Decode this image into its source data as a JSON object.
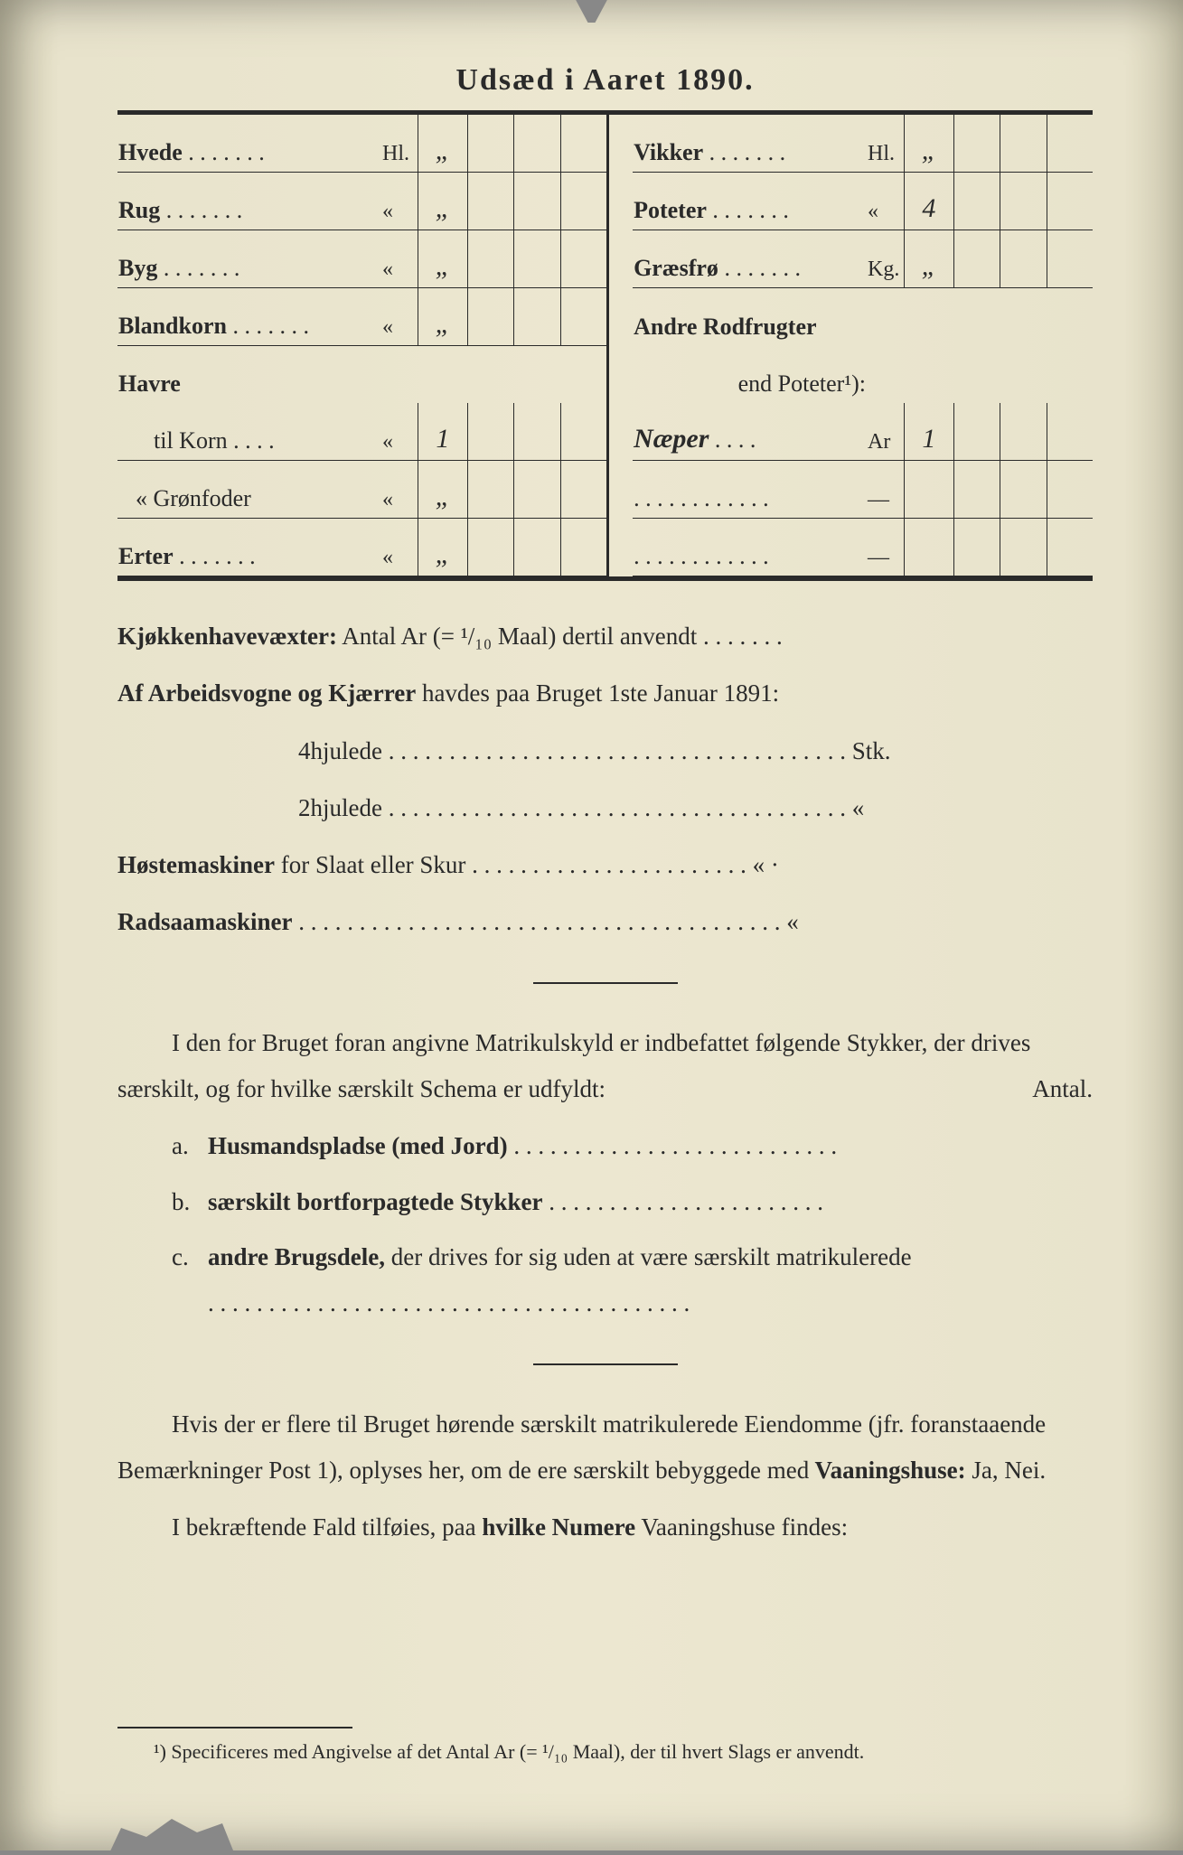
{
  "title": "Udsæd i Aaret 1890.",
  "seed": {
    "left": [
      {
        "label": "Hvede",
        "unit": "Hl.",
        "v1": "„"
      },
      {
        "label": "Rug",
        "unit": "«",
        "v1": "„"
      },
      {
        "label": "Byg",
        "unit": "«",
        "v1": "„"
      },
      {
        "label": "Blandkorn",
        "unit": "«",
        "v1": "„"
      },
      {
        "label": "Havre",
        "unit": "",
        "v1": ""
      },
      {
        "label": "   til Korn",
        "unit": "«",
        "v1": "1"
      },
      {
        "label": "« Grønfoder",
        "unit": "«",
        "v1": "„"
      },
      {
        "label": "Erter",
        "unit": "«",
        "v1": "„"
      }
    ],
    "right": [
      {
        "label": "Vikker",
        "unit": "Hl.",
        "v1": "„"
      },
      {
        "label": "Poteter",
        "unit": "«",
        "v1": "4"
      },
      {
        "label": "Græsfrø",
        "unit": "Kg.",
        "v1": "„"
      },
      {
        "label": "Andre Rodfrugter",
        "unit": "",
        "v1": ""
      },
      {
        "label": "end Poteter¹):",
        "unit": "",
        "v1": ""
      },
      {
        "label_hand": "Næper",
        "unit": "Ar",
        "v1": "1"
      },
      {
        "label": "",
        "unit": "—",
        "v1": ""
      },
      {
        "label": "",
        "unit": "—",
        "v1": ""
      }
    ]
  },
  "lines": {
    "kjokken": "Kjøkkenhavevæxter:",
    "kjokken_rest": " Antal Ar (= ¹/₁₀ Maal) dertil anvendt . . . . . . .",
    "arbeids": "Af Arbeidsvogne og Kjærrer",
    "arbeids_rest": " havdes paa Bruget 1ste Januar 1891:",
    "hjul4": "4hjulede . . . . . . . . . . . . . . . . . . . . . . . . . . . . . . . . . . . . . . Stk.",
    "hjul2": "2hjulede . . . . . . . . . . . . . . . . . . . . . . . . . . . . . . . . . . . . . .  «",
    "hoste": "Høstemaskiner",
    "hoste_rest": " for Slaat eller Skur . . . . . . . . . . . . . . . . . . . . . . .  «  ·",
    "rad": "Radsaamaskiner",
    "rad_rest": " . . . . . . . . . . . . . . . . . . . . . . . . . . . . . . . . . . . . . . . .  «"
  },
  "para1": {
    "text": "I den for Bruget foran angivne Matrikulskyld er indbefattet følgende Stykker, der drives særskilt, og for hvilke særskilt Schema er udfyldt:",
    "antal": "Antal."
  },
  "list": {
    "a": {
      "letter": "a.",
      "bold": "Husmandspladse (med Jord)",
      "dots": " . . . . . . . . . . . . . . . . . . . . . . . . . . ."
    },
    "b": {
      "letter": "b.",
      "bold": "særskilt bortforpagtede Stykker",
      "dots": " . . . . . . . . . . . . . . . . . . . . . . ."
    },
    "c": {
      "letter": "c.",
      "bold": "andre Brugsdele,",
      "rest": " der drives for sig uden at være særskilt matrikulerede",
      "dots": " . . . . . . . . . . . . . . . . . . . . . . . . . . . . . . . . . . . . . . . ."
    }
  },
  "para2": "Hvis der er flere til Bruget hørende særskilt matrikulerede Eiendomme (jfr. foranstaaende Bemærkninger Post 1), oplyses her, om de ere særskilt bebyggede med",
  "para2_bold": " Vaaningshuse:",
  "para2_end": " Ja, Nei.",
  "para3_a": "I bekræftende Fald tilføies, paa ",
  "para3_bold": "hvilke Numere",
  "para3_b": " Vaaningshuse findes:",
  "footnote": "¹) Specificeres med Angivelse af det Antal Ar (= ¹/₁₀ Maal), der til hvert Slags er anvendt.",
  "colors": {
    "paper": "#ece7d0",
    "ink": "#2a2a2a"
  }
}
